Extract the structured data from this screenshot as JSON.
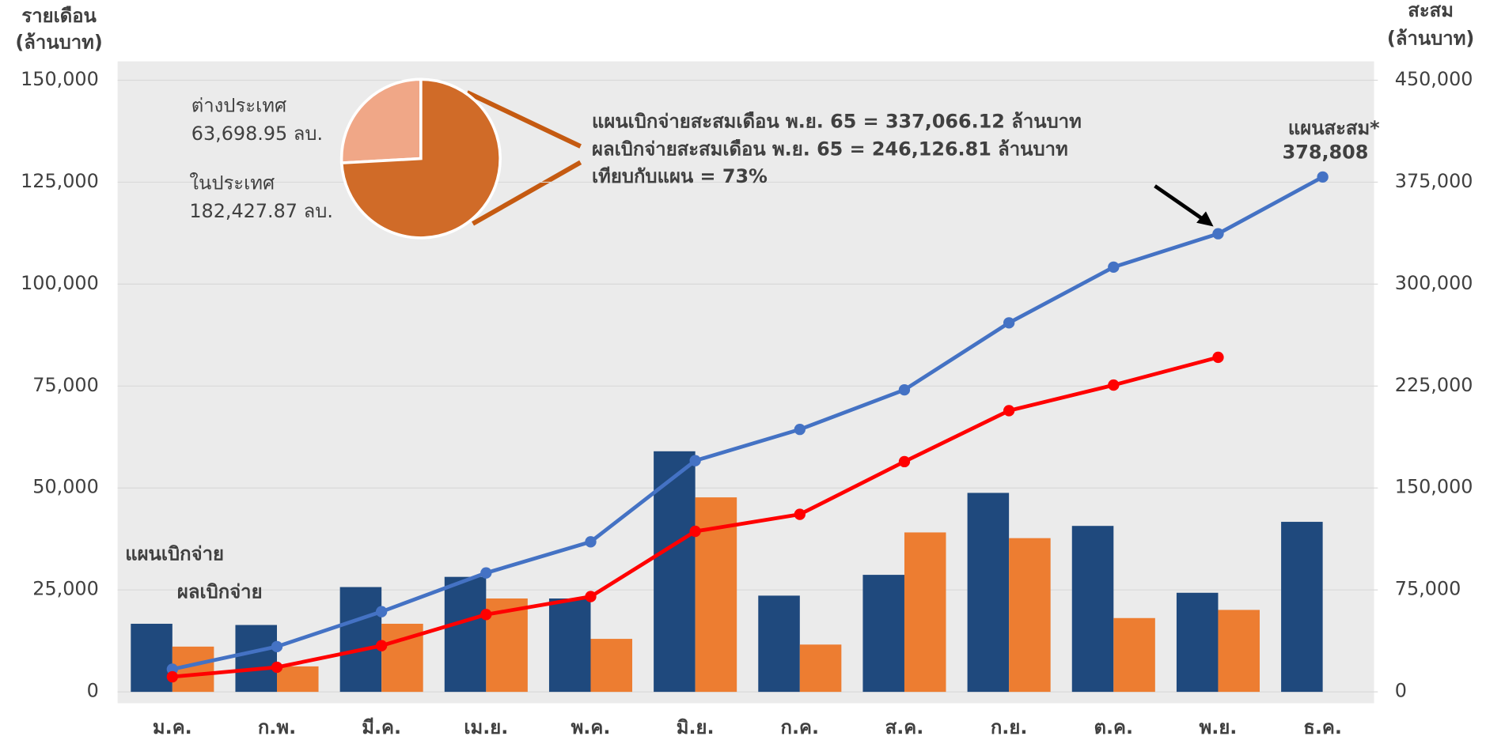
{
  "chart_data": [
    {
      "type": "combo",
      "y_label": [
        "รายเดือน",
        "(ล้านบาท)"
      ],
      "y2_label": [
        "สะสม",
        "(ล้านบาท)"
      ],
      "categories": [
        "ม.ค.",
        "ก.พ.",
        "มี.ค.",
        "เม.ย.",
        "พ.ค.",
        "มิ.ย.",
        "ก.ค.",
        "ส.ค.",
        "ก.ย.",
        "ต.ค.",
        "พ.ย.",
        "ธ.ค."
      ],
      "series": [
        {
          "name": "แผนเบิกจ่าย",
          "type": "bar",
          "axis": "y",
          "color": "#1f497d",
          "values": [
            16700,
            16400,
            25700,
            28200,
            22900,
            59000,
            23600,
            28700,
            48800,
            40700,
            24300,
            41700
          ]
        },
        {
          "name": "ผลเบิกจ่าย",
          "type": "bar",
          "axis": "y",
          "color": "#ed7d31",
          "values": [
            11100,
            6250,
            16700,
            22900,
            13000,
            47700,
            11600,
            39100,
            37700,
            18100,
            20100,
            null
          ]
        },
        {
          "name": "แผนสะสม*",
          "type": "line",
          "axis": "y2",
          "color": "#4472c4",
          "values": [
            16700,
            33300,
            59000,
            87500,
            110400,
            170100,
            193100,
            222200,
            271500,
            312500,
            337066.12,
            378808
          ],
          "value_labels": [
            null,
            null,
            null,
            null,
            null,
            null,
            null,
            null,
            null,
            null,
            null,
            "378,808"
          ]
        },
        {
          "type": "line",
          "axis": "y2",
          "color": "#ff0000",
          "values": [
            11100,
            18100,
            34000,
            56900,
            70100,
            118100,
            130600,
            169400,
            206900,
            225700,
            246126.81,
            null
          ]
        }
      ],
      "ylim": [
        0,
        150000
      ],
      "yticks": [
        0,
        {
          "value": 25000,
          "label": "25,000"
        },
        {
          "value": 50000,
          "label": "50,000"
        },
        {
          "value": 75000,
          "label": "75,000"
        },
        {
          "value": 100000,
          "label": "100,000"
        },
        {
          "value": 125000,
          "label": "125,000"
        },
        {
          "value": 150000,
          "label": "150,000"
        }
      ],
      "y2lim": [
        0,
        450000
      ],
      "y2ticks": [
        0,
        {
          "value": 75000,
          "label": "75,000"
        },
        {
          "value": 150000,
          "label": "150,000"
        },
        {
          "value": 225000,
          "label": "225,000"
        },
        {
          "value": 300000,
          "label": "300,000"
        },
        {
          "value": 375000,
          "label": "375,000"
        },
        {
          "value": 450000,
          "label": "450,000"
        }
      ],
      "grid": true,
      "annotations": [
        {
          "text": "แผนเบิกจ่ายสะสมเดือน พ.ย. 65 = 337,066.12 ล้านบาท",
          "color": "#000000"
        },
        {
          "text": "ผลเบิกจ่ายสะสมเดือน พ.ย. 65 = 246,126.81 ล้านบาท",
          "color": "#ed7d31"
        },
        {
          "text": "เทียบกับแผน = 73%",
          "color": "#000000"
        }
      ]
    },
    {
      "type": "pie",
      "categories": [
        "ต่างประเทศ",
        "ในประเทศ"
      ],
      "values": [
        63698.95,
        182427.87
      ],
      "value_labels": [
        "63,698.95 ลบ.",
        "182,427.87 ลบ."
      ],
      "colors": [
        "#f0a787",
        "#d06b28"
      ]
    }
  ]
}
